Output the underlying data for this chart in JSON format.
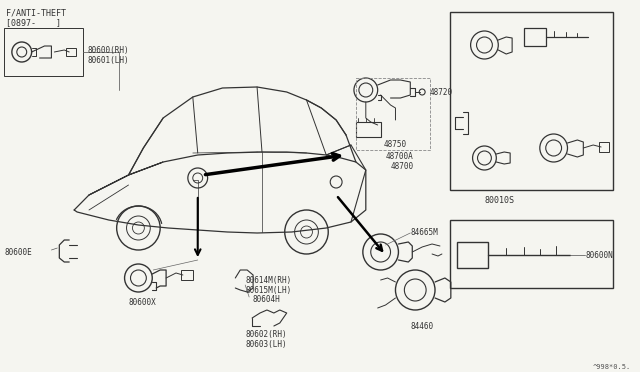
{
  "bg_color": "#f5f5f0",
  "fig_width": 6.4,
  "fig_height": 3.72,
  "dpi": 100,
  "lc": "#333333",
  "tc": "#333333",
  "footer_text": "^998*0.5.",
  "header_text1": "F/ANTI-THEFT",
  "header_text2": "[0897-    ]",
  "fs": 5.5,
  "fs_hdr": 6.0
}
